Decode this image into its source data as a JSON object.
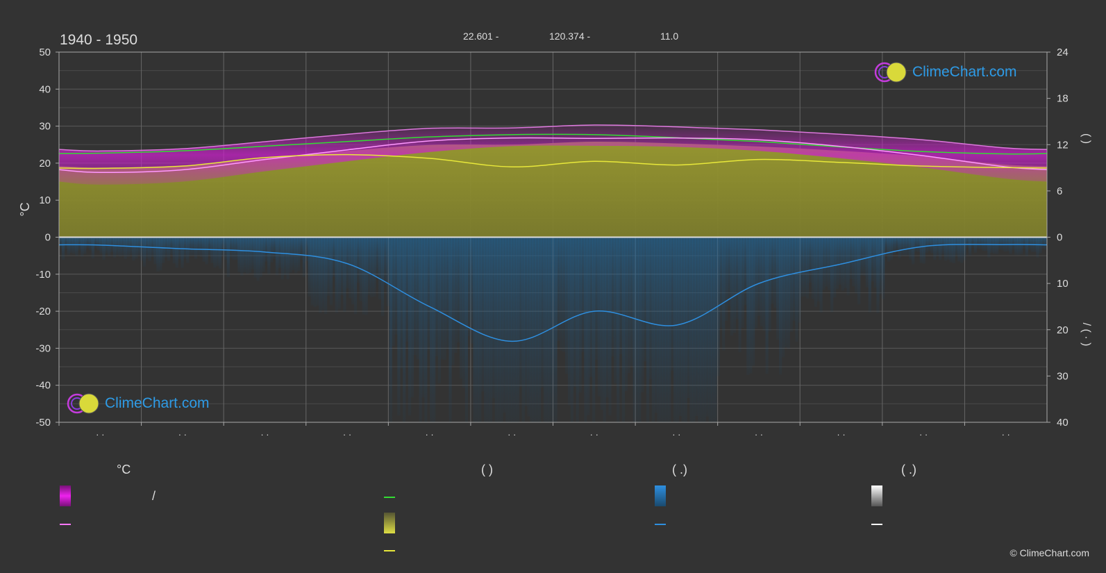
{
  "header": {
    "period": "1940 - 1950",
    "lat": "22.601 -",
    "lon": "120.374 -",
    "elevation": "11.0"
  },
  "brand": {
    "logo_text": "ClimeChart.com",
    "copyright": "© ClimeChart.com"
  },
  "chart_data": {
    "type": "area",
    "x_ticks": [
      "· ·",
      "· ·",
      "· ·",
      "· ·",
      "· ·",
      "· ·",
      "· ·",
      "· ·",
      "· ·",
      "· ·",
      "· ·",
      "· ·"
    ],
    "left_axis": {
      "label": "°C",
      "ticks": [
        50,
        40,
        30,
        20,
        10,
        0,
        -10,
        -20,
        -30,
        -40,
        -50
      ],
      "range": [
        -50,
        50
      ]
    },
    "right_axis_top": {
      "label": "(   )",
      "ticks": [
        24,
        18,
        12,
        6,
        0
      ],
      "range": [
        0,
        24
      ]
    },
    "right_axis_bottom": {
      "label": "/ ( · )",
      "ticks": [
        0,
        10,
        20,
        30,
        40
      ],
      "range": [
        0,
        40
      ]
    },
    "grid": true,
    "series": [
      {
        "name": "daylight",
        "axis": "right_top",
        "color": "#33dd33",
        "values": [
          10.9,
          11.2,
          11.8,
          12.4,
          13.0,
          13.3,
          13.3,
          12.9,
          12.4,
          11.7,
          11.1,
          10.8
        ]
      },
      {
        "name": "sunshine",
        "axis": "left",
        "color": "#e8e83a",
        "values": [
          18.6,
          19.2,
          21.5,
          22.3,
          21.3,
          19.0,
          20.5,
          19.5,
          21.0,
          20.2,
          19.2,
          18.8
        ]
      },
      {
        "name": "max_temp",
        "axis": "left",
        "color": "#dd77dd",
        "values": [
          23.3,
          23.9,
          25.8,
          27.8,
          29.4,
          29.5,
          30.3,
          29.8,
          29.0,
          27.8,
          26.3,
          24.1
        ]
      },
      {
        "name": "mean_temp",
        "axis": "left",
        "color": "#ff99ff",
        "values": [
          17.5,
          18.2,
          21.0,
          23.6,
          26.0,
          26.8,
          26.7,
          26.8,
          26.3,
          24.5,
          22.0,
          19.0
        ]
      },
      {
        "name": "min_temp",
        "axis": "left",
        "color": "#aa33aa",
        "values": [
          14.2,
          15.0,
          17.8,
          20.5,
          23.0,
          24.6,
          24.7,
          24.4,
          23.3,
          21.3,
          18.8,
          15.8
        ]
      },
      {
        "name": "precipitation",
        "axis": "right_bottom",
        "color": "#2e8fe0",
        "values": [
          1.7,
          2.5,
          3.2,
          5.7,
          15.0,
          22.5,
          16.0,
          19.0,
          10.0,
          5.8,
          2.0,
          1.6
        ]
      }
    ]
  },
  "legend": {
    "col1_header": "°C",
    "col1_sep": "/",
    "col2_header": "(          )",
    "col3_header": "(    .)",
    "col4_header": "(    .)"
  }
}
